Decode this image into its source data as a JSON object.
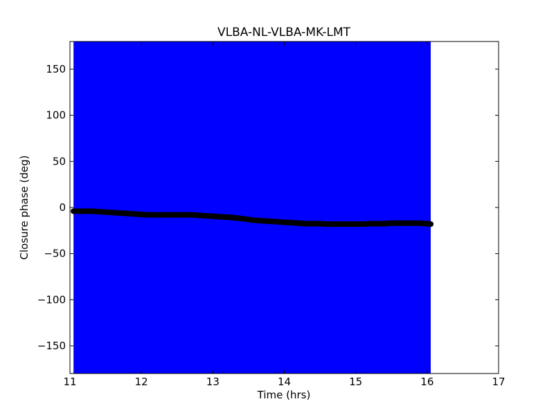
{
  "chart_data": {
    "type": "scatter",
    "title": "VLBA-NL-VLBA-MK-LMT",
    "xlabel": "Time (hrs)",
    "ylabel": "Closure phase (deg)",
    "xlim": [
      11,
      17
    ],
    "ylim": [
      -180,
      180
    ],
    "x_ticks": [
      11,
      12,
      13,
      14,
      15,
      16,
      17
    ],
    "x_tick_labels": [
      "11",
      "12",
      "13",
      "14",
      "15",
      "16",
      "17"
    ],
    "y_ticks": [
      -150,
      -100,
      -50,
      0,
      50,
      100,
      150
    ],
    "y_tick_labels": [
      "−150",
      "−100",
      "−50",
      "0",
      "50",
      "100",
      "150"
    ],
    "grid": false,
    "error_band_color": "#0000ff",
    "marker_color": "#000000",
    "series": [
      {
        "x": [
          11.05,
          11.15,
          11.3,
          11.4,
          11.5,
          11.6,
          11.7,
          11.8,
          11.9,
          12.0,
          12.1,
          12.2,
          12.3,
          12.4,
          12.5,
          12.6,
          12.7,
          12.8,
          12.9,
          13.0,
          13.1,
          13.2,
          13.3,
          13.4,
          13.5,
          13.6,
          13.7,
          13.8,
          13.9,
          14.0,
          14.1,
          14.2,
          14.3,
          14.4,
          14.5,
          14.6,
          14.7,
          14.8,
          14.9,
          15.0,
          15.1,
          15.2,
          15.3,
          15.4,
          15.5,
          15.6,
          15.7,
          15.8,
          15.9,
          16.0,
          16.05
        ],
        "y": [
          -4,
          -4,
          -4,
          -4.5,
          -5,
          -5.5,
          -6,
          -6.5,
          -7,
          -7.5,
          -8,
          -8,
          -8,
          -8,
          -8,
          -8,
          -8,
          -8.5,
          -9,
          -9.5,
          -10,
          -10.5,
          -11,
          -12,
          -13,
          -14,
          -14.5,
          -15,
          -15.5,
          -16,
          -16.5,
          -17,
          -17.5,
          -17.5,
          -17.5,
          -18,
          -18,
          -18,
          -18,
          -18,
          -18,
          -17.5,
          -17.5,
          -17.5,
          -17,
          -17,
          -17,
          -17,
          -17,
          -17.5,
          -18
        ]
      }
    ]
  }
}
